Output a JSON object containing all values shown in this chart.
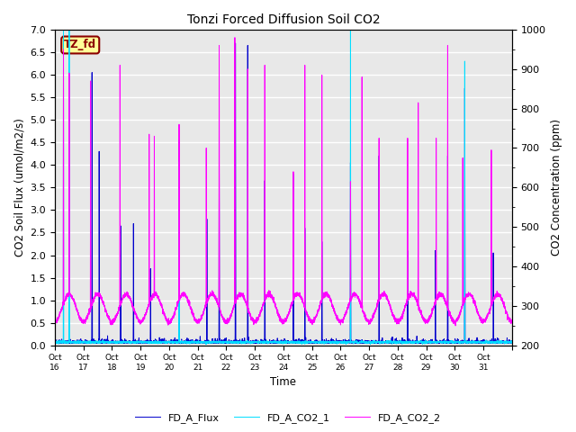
{
  "title": "Tonzi Forced Diffusion Soil CO2",
  "xlabel": "Time",
  "ylabel_left": "CO2 Soil Flux (umol/m2/s)",
  "ylabel_right": "CO2 Concentration (ppm)",
  "ylim_left": [
    0.0,
    7.0
  ],
  "ylim_right": [
    200,
    1000
  ],
  "yticks_left": [
    0.0,
    0.5,
    1.0,
    1.5,
    2.0,
    2.5,
    3.0,
    3.5,
    4.0,
    4.5,
    5.0,
    5.5,
    6.0,
    6.5,
    7.0
  ],
  "yticks_right": [
    200,
    300,
    400,
    500,
    600,
    700,
    800,
    900,
    1000
  ],
  "xtick_labels": [
    "Oct 16",
    "Oct 17",
    "Oct 18",
    "Oct 19",
    "Oct 20",
    "Oct 21",
    "Oct 22",
    "Oct 23",
    "Oct 24",
    "Oct 25",
    "Oct 26",
    "Oct 27",
    "Oct 28",
    "Oct 29",
    "Oct 30",
    "Oct 31"
  ],
  "legend_labels": [
    "FD_A_Flux",
    "FD_A_CO2_1",
    "FD_A_CO2_2"
  ],
  "flux_color": "#0000CC",
  "co2_1_color": "#00DDFF",
  "co2_2_color": "#FF00FF",
  "watermark_text": "TZ_fd",
  "watermark_color": "#8B0000",
  "watermark_bg": "#FFFF99",
  "background_color": "#E8E8E8",
  "grid_color": "#FFFFFF",
  "n_days": 16,
  "pts_per_day": 288,
  "seed": 42
}
